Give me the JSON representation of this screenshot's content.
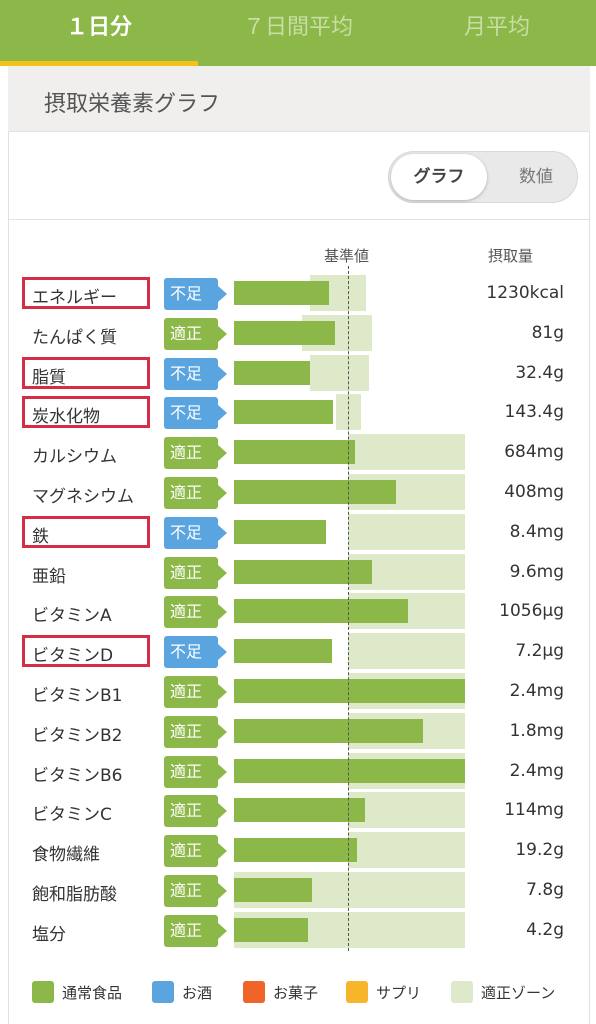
{
  "tabs": [
    {
      "label": "１日分",
      "active": true
    },
    {
      "label": "７日間平均",
      "active": false
    },
    {
      "label": "月平均",
      "active": false
    }
  ],
  "section": {
    "title": "摂取栄養素グラフ"
  },
  "view_toggle": {
    "graph_label": "グラフ",
    "number_label": "数値",
    "selected": "グラフ"
  },
  "columns": {
    "reference": "基準値",
    "intake": "摂取量"
  },
  "nutrients": [
    {
      "name": "エネルギー",
      "status": "不足",
      "amount": "1230kcal",
      "highlighted": true
    },
    {
      "name": "たんぱく質",
      "status": "適正",
      "amount": "81g",
      "highlighted": false
    },
    {
      "name": "脂質",
      "status": "不足",
      "amount": "32.4g",
      "highlighted": true
    },
    {
      "name": "炭水化物",
      "status": "不足",
      "amount": "143.4g",
      "highlighted": true
    },
    {
      "name": "カルシウム",
      "status": "適正",
      "amount": "684mg",
      "highlighted": false
    },
    {
      "name": "マグネシウム",
      "status": "適正",
      "amount": "408mg",
      "highlighted": false
    },
    {
      "name": "鉄",
      "status": "不足",
      "amount": "8.4mg",
      "highlighted": true
    },
    {
      "name": "亜鉛",
      "status": "適正",
      "amount": "9.6mg",
      "highlighted": false
    },
    {
      "name": "ビタミンA",
      "status": "適正",
      "amount": "1056µg",
      "highlighted": false
    },
    {
      "name": "ビタミンD",
      "status": "不足",
      "amount": "7.2µg",
      "highlighted": true
    },
    {
      "name": "ビタミンB1",
      "status": "適正",
      "amount": "2.4mg",
      "highlighted": false
    },
    {
      "name": "ビタミンB2",
      "status": "適正",
      "amount": "1.8mg",
      "highlighted": false
    },
    {
      "name": "ビタミンB6",
      "status": "適正",
      "amount": "2.4mg",
      "highlighted": false
    },
    {
      "name": "ビタミンC",
      "status": "適正",
      "amount": "114mg",
      "highlighted": false
    },
    {
      "name": "食物繊維",
      "status": "適正",
      "amount": "19.2g",
      "highlighted": false
    },
    {
      "name": "飽和脂肪酸",
      "status": "適正",
      "amount": "7.8g",
      "highlighted": false
    },
    {
      "name": "塩分",
      "status": "適正",
      "amount": "4.2g",
      "highlighted": false
    }
  ],
  "legend": [
    {
      "label": "通常食品",
      "color": "#8cb849"
    },
    {
      "label": "お酒",
      "color": "#5aa4df"
    },
    {
      "label": "お菓子",
      "color": "#f0642a"
    },
    {
      "label": "サプリ",
      "color": "#f6b52b"
    },
    {
      "label": "適正ゾーン",
      "color": "#dde9c8"
    }
  ],
  "colors": {
    "accent": "#8cb849",
    "tab_underline": "#f4c21a",
    "shortage": "#5aa4df",
    "highlight": "#d52d46"
  }
}
